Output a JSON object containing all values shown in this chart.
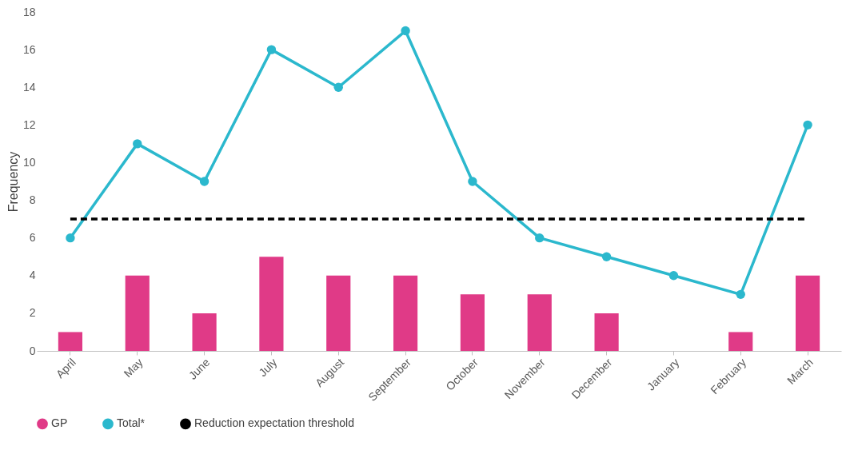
{
  "chart_data": {
    "type": "bar",
    "ylabel": "Frequency",
    "categories": [
      "April",
      "May",
      "June",
      "July",
      "August",
      "September",
      "October",
      "November",
      "December",
      "January",
      "February",
      "March"
    ],
    "series": [
      {
        "name": "GP",
        "color": "#e03a87",
        "values": [
          1,
          4,
          2,
          5,
          4,
          4,
          3,
          3,
          2,
          0,
          1,
          4
        ]
      },
      {
        "name": "Total*",
        "type": "line",
        "marker": "circle",
        "color": "#2bb8cd",
        "values": [
          6,
          11,
          9,
          16,
          14,
          17,
          9,
          6,
          5,
          4,
          3,
          12
        ]
      },
      {
        "name": "Reduction expectation threshold",
        "type": "line",
        "marker": "none",
        "line_style": "dashed",
        "color": "#000000",
        "values": [
          7,
          7,
          7,
          7,
          7,
          7,
          7,
          7,
          7,
          7,
          7,
          7
        ]
      }
    ],
    "ylim": [
      0,
      18
    ],
    "yticks": [
      0,
      2,
      4,
      6,
      8,
      10,
      12,
      14,
      16,
      18
    ],
    "grid": false,
    "legend": "bottom"
  }
}
